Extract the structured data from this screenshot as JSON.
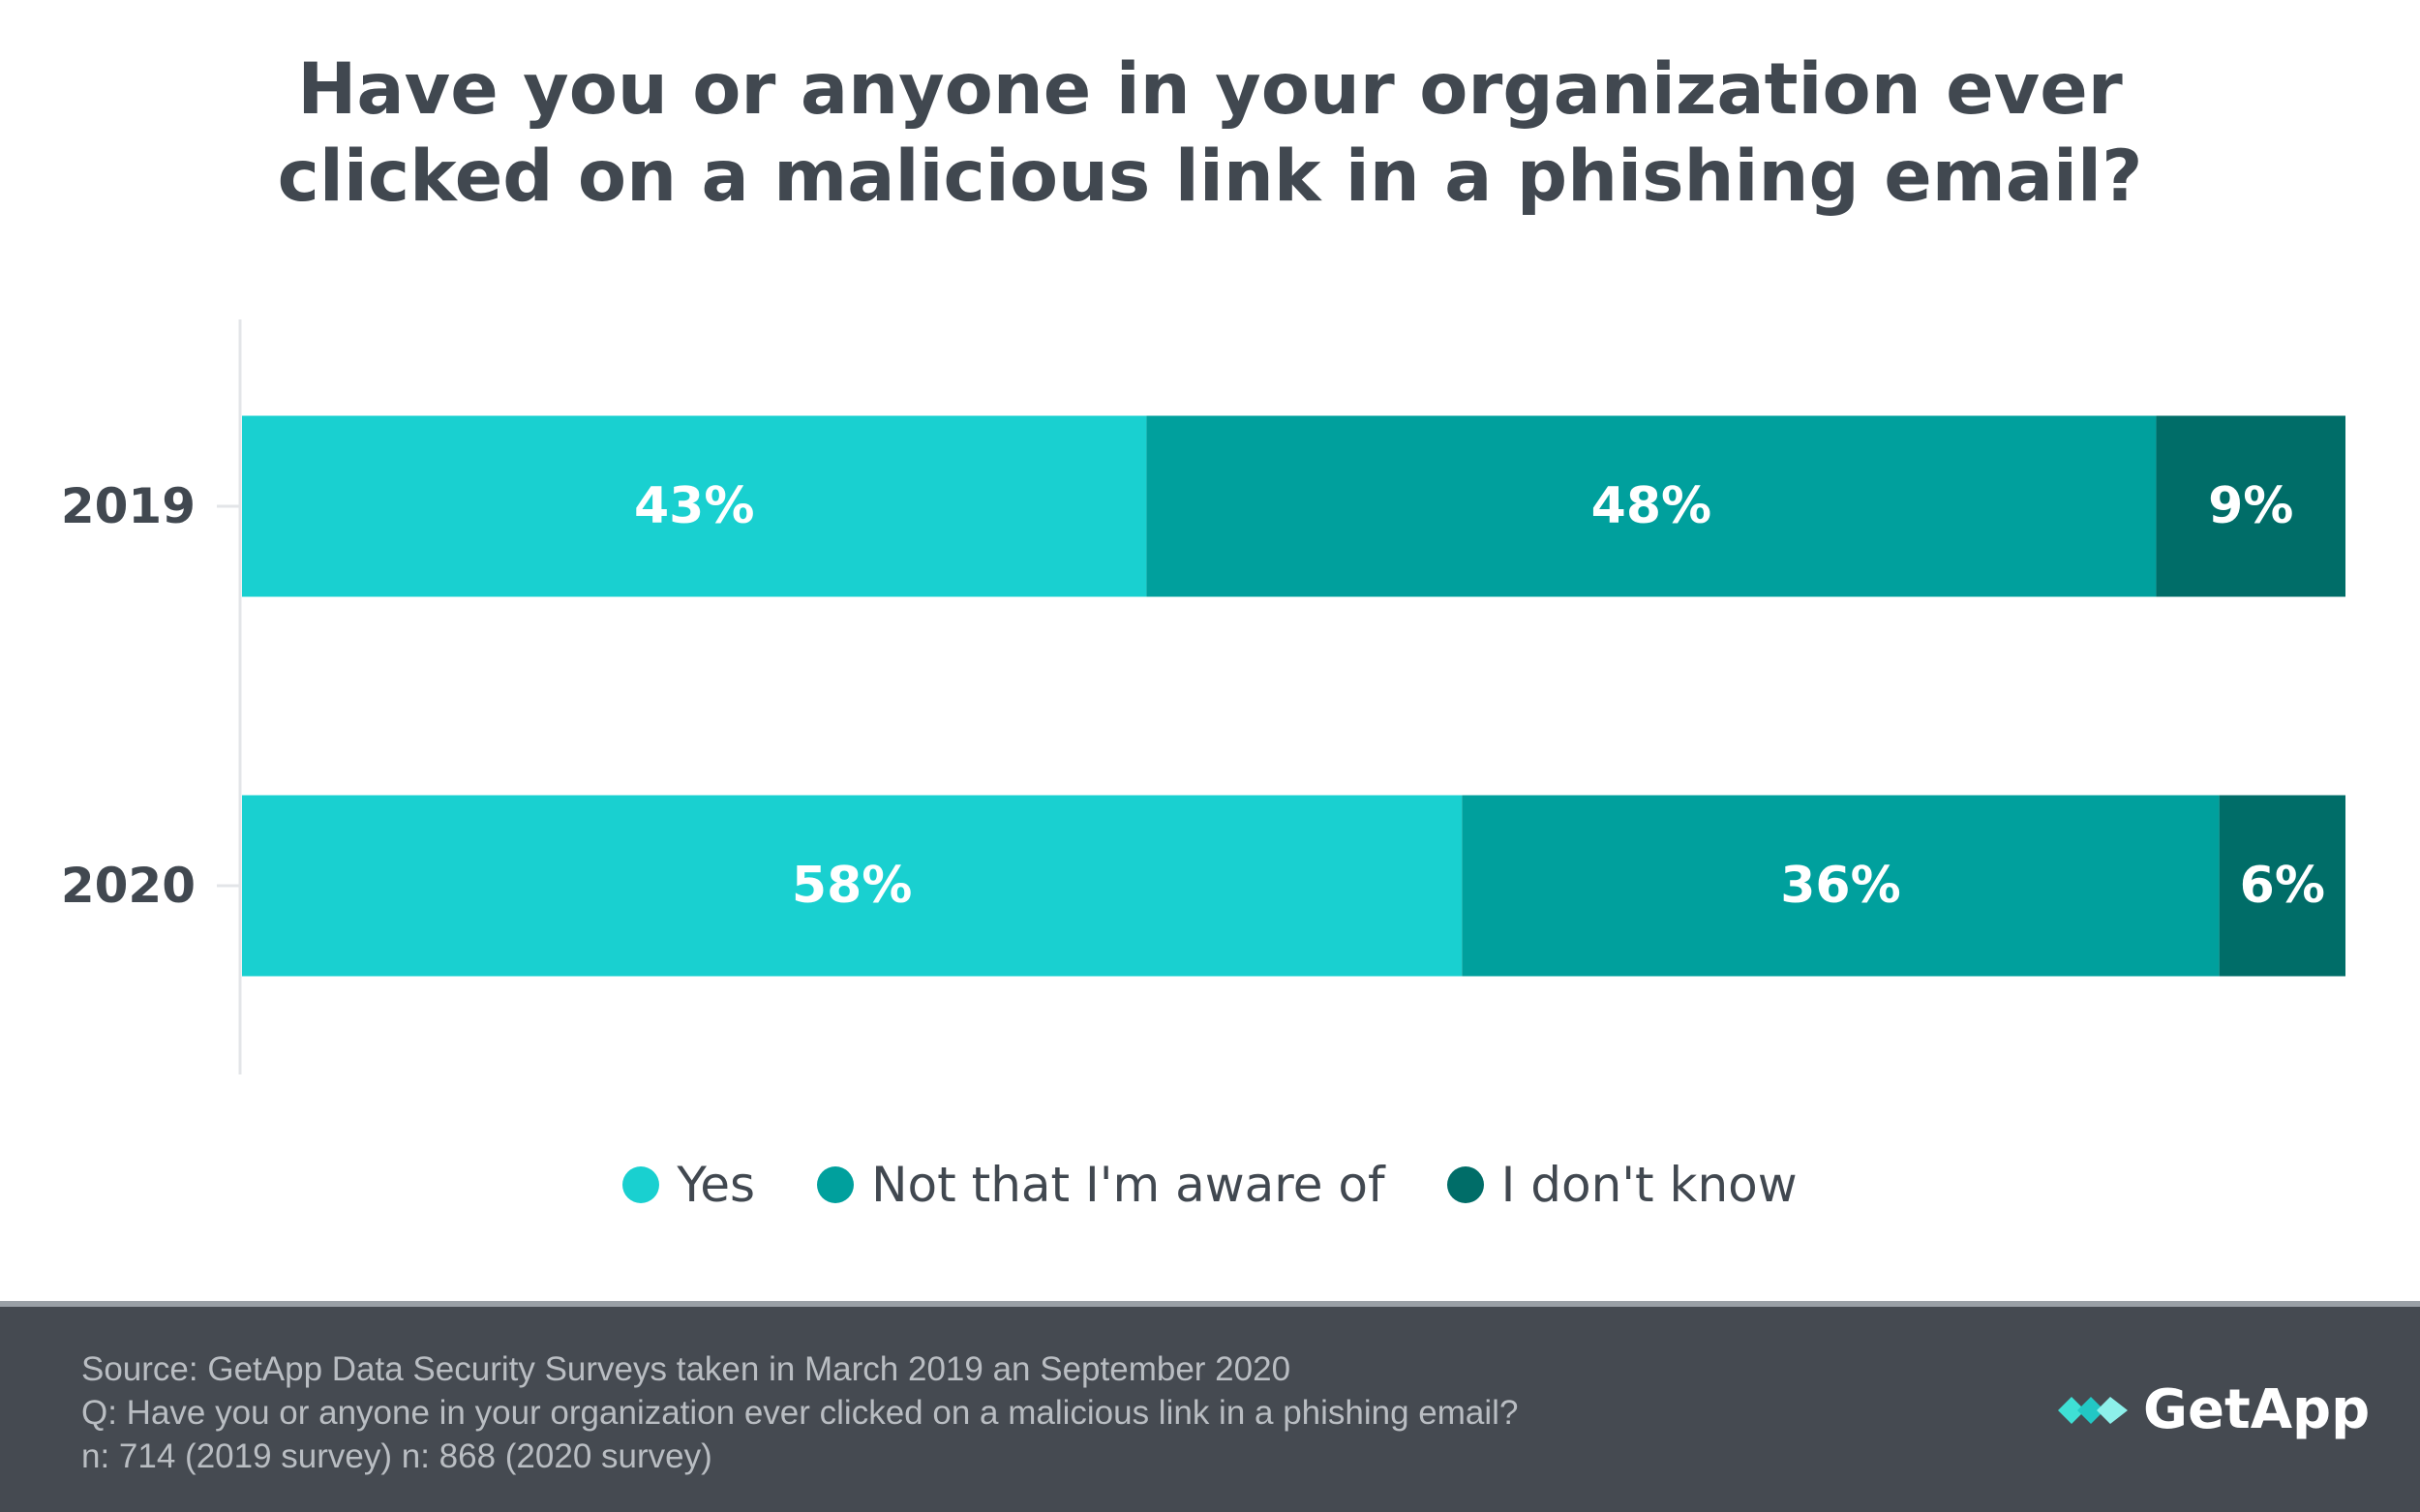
{
  "chart_data": {
    "type": "bar",
    "orientation": "horizontal",
    "stacked": true,
    "title": "Have you or anyone in your organization ever clicked on a malicious link in a phishing email?",
    "title_lines": [
      "Have you or anyone in your organization ever",
      "clicked on a malicious link in a phishing email?"
    ],
    "categories": [
      "2019",
      "2020"
    ],
    "series": [
      {
        "name": "Yes",
        "values": [
          43,
          58
        ],
        "labels": [
          "43%",
          "58%"
        ],
        "color": "#19d0d0"
      },
      {
        "name": "Not that I'm aware of",
        "values": [
          48,
          36
        ],
        "labels": [
          "48%",
          "36%"
        ],
        "color": "#00a09d"
      },
      {
        "name": "I don't know",
        "values": [
          9,
          6
        ],
        "labels": [
          "9%",
          "6%"
        ],
        "color": "#006d68"
      }
    ],
    "xlim": [
      0,
      100
    ],
    "grid": false,
    "legend_position": "bottom-center"
  },
  "footer": {
    "lines": [
      "Source: GetApp Data Security Surveys taken in March 2019 an September 2020",
      "Q: Have you or anyone in your organization ever clicked on a malicious link in a phishing email?",
      "n: 714 (2019 survey) n: 868 (2020 survey)"
    ],
    "logo_text": "GetApp"
  },
  "colors": {
    "title": "#414850",
    "footer_bg": "#454a51",
    "footer_text": "#b9bdc2",
    "axis": "#e3e5e8",
    "bar_label": "#ffffff"
  }
}
